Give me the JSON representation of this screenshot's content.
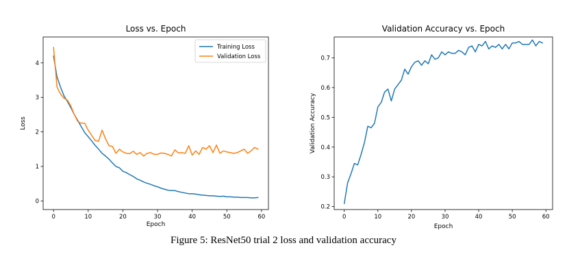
{
  "caption": "Figure 5: ResNet50 trial 2 loss and validation accuracy",
  "chart_data": [
    {
      "type": "line",
      "title": "Loss vs. Epoch",
      "xlabel": "Epoch",
      "ylabel": "Loss",
      "xlim": [
        -3,
        62
      ],
      "ylim": [
        -0.25,
        4.75
      ],
      "xticks": [
        0,
        10,
        20,
        30,
        40,
        50,
        60
      ],
      "yticks": [
        0,
        1,
        2,
        3,
        4
      ],
      "legend": "top-right",
      "grid": false,
      "x": [
        0,
        1,
        2,
        3,
        4,
        5,
        6,
        7,
        8,
        9,
        10,
        11,
        12,
        13,
        14,
        15,
        16,
        17,
        18,
        19,
        20,
        21,
        22,
        23,
        24,
        25,
        26,
        27,
        28,
        29,
        30,
        31,
        32,
        33,
        34,
        35,
        36,
        37,
        38,
        39,
        40,
        41,
        42,
        43,
        44,
        45,
        46,
        47,
        48,
        49,
        50,
        51,
        52,
        53,
        54,
        55,
        56,
        57,
        58,
        59
      ],
      "series": [
        {
          "name": "Training Loss",
          "color": "#1f77b4",
          "values": [
            4.2,
            3.6,
            3.3,
            3.05,
            2.88,
            2.7,
            2.5,
            2.33,
            2.15,
            1.98,
            1.86,
            1.74,
            1.61,
            1.5,
            1.38,
            1.3,
            1.21,
            1.1,
            1.0,
            0.96,
            0.86,
            0.82,
            0.76,
            0.71,
            0.64,
            0.6,
            0.55,
            0.51,
            0.48,
            0.44,
            0.41,
            0.37,
            0.34,
            0.31,
            0.3,
            0.3,
            0.27,
            0.25,
            0.23,
            0.21,
            0.21,
            0.2,
            0.18,
            0.17,
            0.16,
            0.15,
            0.15,
            0.14,
            0.13,
            0.14,
            0.12,
            0.12,
            0.11,
            0.11,
            0.1,
            0.1,
            0.1,
            0.09,
            0.09,
            0.1
          ]
        },
        {
          "name": "Validation Loss",
          "color": "#ff7f0e",
          "values": [
            4.45,
            3.3,
            3.1,
            2.98,
            2.92,
            2.75,
            2.5,
            2.3,
            2.25,
            2.25,
            2.05,
            1.9,
            1.75,
            1.73,
            2.05,
            1.8,
            1.6,
            1.58,
            1.38,
            1.5,
            1.42,
            1.38,
            1.37,
            1.44,
            1.35,
            1.4,
            1.3,
            1.38,
            1.4,
            1.35,
            1.35,
            1.39,
            1.38,
            1.35,
            1.3,
            1.48,
            1.39,
            1.4,
            1.38,
            1.6,
            1.33,
            1.45,
            1.35,
            1.55,
            1.5,
            1.6,
            1.4,
            1.62,
            1.38,
            1.45,
            1.42,
            1.4,
            1.38,
            1.4,
            1.45,
            1.5,
            1.38,
            1.45,
            1.55,
            1.5
          ]
        }
      ]
    },
    {
      "type": "line",
      "title": "Validation Accuracy vs. Epoch",
      "xlabel": "Epoch",
      "ylabel": "Validation Accuracy",
      "xlim": [
        -3,
        62
      ],
      "ylim": [
        0.19,
        0.77
      ],
      "xticks": [
        0,
        10,
        20,
        30,
        40,
        50,
        60
      ],
      "yticks": [
        0.2,
        0.3,
        0.4,
        0.5,
        0.6,
        0.7
      ],
      "grid": false,
      "x": [
        0,
        1,
        2,
        3,
        4,
        5,
        6,
        7,
        8,
        9,
        10,
        11,
        12,
        13,
        14,
        15,
        16,
        17,
        18,
        19,
        20,
        21,
        22,
        23,
        24,
        25,
        26,
        27,
        28,
        29,
        30,
        31,
        32,
        33,
        34,
        35,
        36,
        37,
        38,
        39,
        40,
        41,
        42,
        43,
        44,
        45,
        46,
        47,
        48,
        49,
        50,
        51,
        52,
        53,
        54,
        55,
        56,
        57,
        58,
        59
      ],
      "series": [
        {
          "name": "",
          "color": "#1f77b4",
          "values": [
            0.21,
            0.28,
            0.31,
            0.345,
            0.34,
            0.375,
            0.415,
            0.47,
            0.465,
            0.48,
            0.535,
            0.55,
            0.585,
            0.595,
            0.555,
            0.595,
            0.61,
            0.625,
            0.662,
            0.645,
            0.67,
            0.685,
            0.69,
            0.675,
            0.69,
            0.68,
            0.71,
            0.695,
            0.7,
            0.72,
            0.71,
            0.72,
            0.715,
            0.715,
            0.725,
            0.72,
            0.71,
            0.735,
            0.74,
            0.72,
            0.745,
            0.74,
            0.755,
            0.73,
            0.74,
            0.735,
            0.745,
            0.73,
            0.745,
            0.73,
            0.75,
            0.75,
            0.755,
            0.745,
            0.745,
            0.745,
            0.76,
            0.74,
            0.755,
            0.75
          ]
        }
      ]
    }
  ]
}
